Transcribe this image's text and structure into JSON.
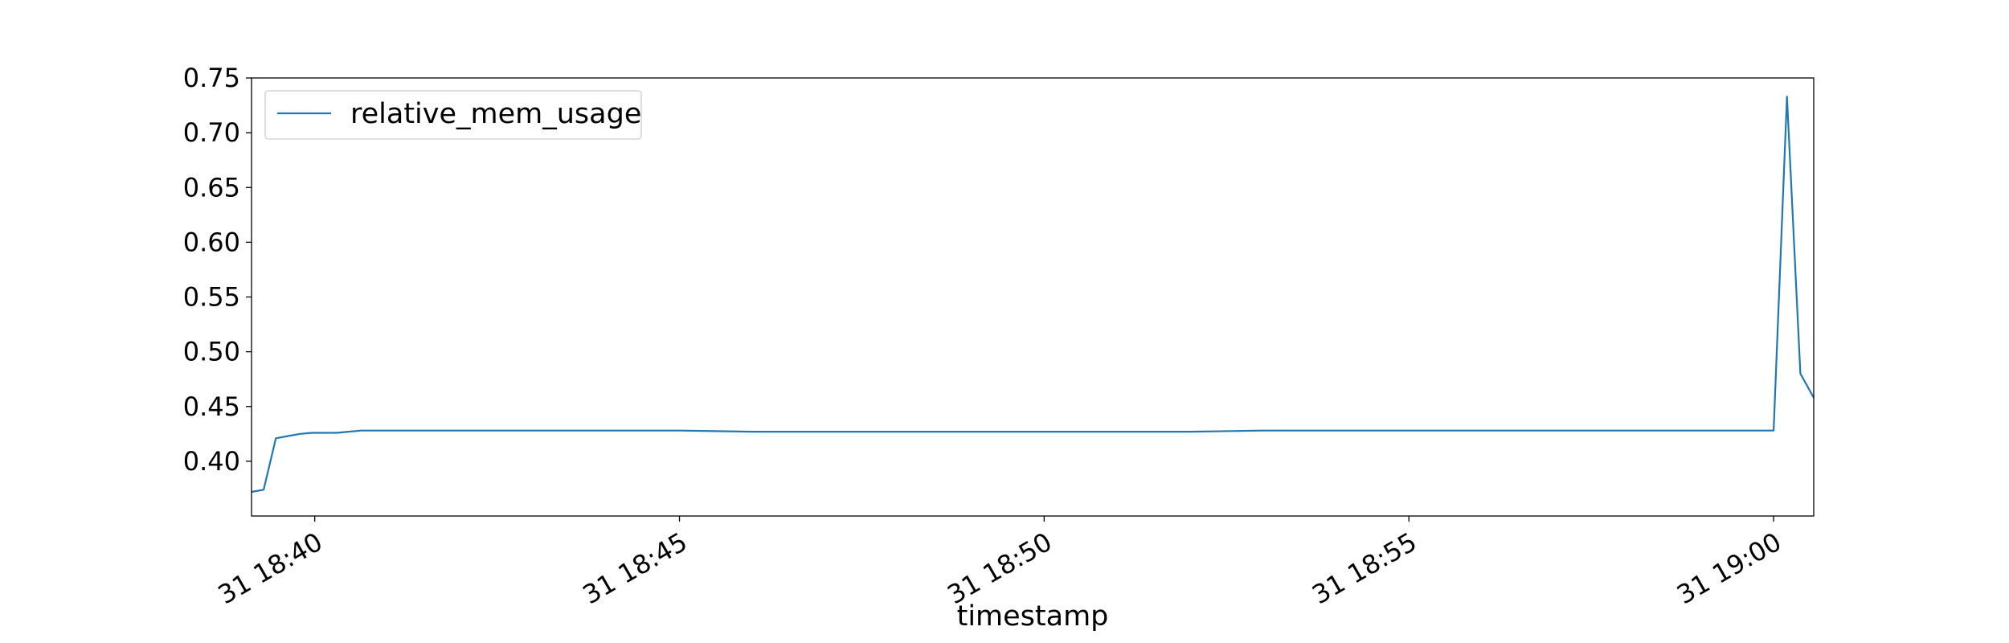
{
  "chart_data": {
    "type": "line",
    "title": "",
    "xlabel": "timestamp",
    "ylabel": "",
    "grid": false,
    "legend_position": "upper-left",
    "xlim": [
      "18:39:08",
      "19:00:33"
    ],
    "ylim": [
      0.35,
      0.75
    ],
    "x_ticks": [
      {
        "time": "18:40:00",
        "label": "31 18:40"
      },
      {
        "time": "18:45:00",
        "label": "31 18:45"
      },
      {
        "time": "18:50:00",
        "label": "31 18:50"
      },
      {
        "time": "18:55:00",
        "label": "31 18:55"
      },
      {
        "time": "19:00:00",
        "label": "31 19:00"
      }
    ],
    "y_ticks": [
      0.4,
      0.45,
      0.5,
      0.55,
      0.6,
      0.65,
      0.7,
      0.75
    ],
    "series": [
      {
        "name": "relative_mem_usage",
        "color": "#1f77b4",
        "points": [
          [
            "18:39:08",
            0.372
          ],
          [
            "18:39:18",
            0.374
          ],
          [
            "18:39:28",
            0.421
          ],
          [
            "18:39:38",
            0.423
          ],
          [
            "18:39:48",
            0.425
          ],
          [
            "18:39:58",
            0.426
          ],
          [
            "18:40:08",
            0.426
          ],
          [
            "18:40:18",
            0.426
          ],
          [
            "18:40:28",
            0.427
          ],
          [
            "18:40:38",
            0.428
          ],
          [
            "18:41:00",
            0.428
          ],
          [
            "18:42:00",
            0.428
          ],
          [
            "18:43:00",
            0.428
          ],
          [
            "18:44:00",
            0.428
          ],
          [
            "18:45:00",
            0.428
          ],
          [
            "18:46:00",
            0.427
          ],
          [
            "18:47:00",
            0.427
          ],
          [
            "18:48:00",
            0.427
          ],
          [
            "18:49:00",
            0.427
          ],
          [
            "18:50:00",
            0.427
          ],
          [
            "18:51:00",
            0.427
          ],
          [
            "18:52:00",
            0.427
          ],
          [
            "18:53:00",
            0.428
          ],
          [
            "18:54:00",
            0.428
          ],
          [
            "18:55:00",
            0.428
          ],
          [
            "18:56:00",
            0.428
          ],
          [
            "18:57:00",
            0.428
          ],
          [
            "18:58:00",
            0.428
          ],
          [
            "18:59:00",
            0.428
          ],
          [
            "18:59:30",
            0.428
          ],
          [
            "19:00:00",
            0.428
          ],
          [
            "19:00:11",
            0.733
          ],
          [
            "19:00:22",
            0.48
          ],
          [
            "19:00:33",
            0.458
          ]
        ]
      }
    ]
  },
  "legend": {
    "entries": [
      {
        "label": "relative_mem_usage",
        "color": "#1f77b4"
      }
    ]
  }
}
